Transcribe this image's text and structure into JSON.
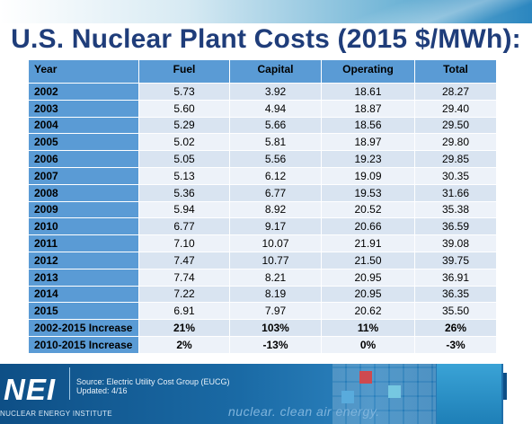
{
  "slide": {
    "title": "U.S. Nuclear Plant Costs (2015 $/MWh):"
  },
  "table": {
    "headers": [
      "Year",
      "Fuel",
      "Capital",
      "Operating",
      "Total"
    ],
    "rows": [
      [
        "2002",
        "5.73",
        "3.92",
        "18.61",
        "28.27"
      ],
      [
        "2003",
        "5.60",
        "4.94",
        "18.87",
        "29.40"
      ],
      [
        "2004",
        "5.29",
        "5.66",
        "18.56",
        "29.50"
      ],
      [
        "2005",
        "5.02",
        "5.81",
        "18.97",
        "29.80"
      ],
      [
        "2006",
        "5.05",
        "5.56",
        "19.23",
        "29.85"
      ],
      [
        "2007",
        "5.13",
        "6.12",
        "19.09",
        "30.35"
      ],
      [
        "2008",
        "5.36",
        "6.77",
        "19.53",
        "31.66"
      ],
      [
        "2009",
        "5.94",
        "8.92",
        "20.52",
        "35.38"
      ],
      [
        "2010",
        "6.77",
        "9.17",
        "20.66",
        "36.59"
      ],
      [
        "2011",
        "7.10",
        "10.07",
        "21.91",
        "39.08"
      ],
      [
        "2012",
        "7.47",
        "10.77",
        "21.50",
        "39.75"
      ],
      [
        "2013",
        "7.74",
        "8.21",
        "20.95",
        "36.91"
      ],
      [
        "2014",
        "7.22",
        "8.19",
        "20.95",
        "36.35"
      ],
      [
        "2015",
        "6.91",
        "7.97",
        "20.62",
        "35.50"
      ],
      [
        "2002-2015 Increase",
        "21%",
        "103%",
        "11%",
        "26%"
      ],
      [
        "2010-2015 Increase",
        "2%",
        "-13%",
        "0%",
        "-3%"
      ]
    ]
  },
  "footer": {
    "logo": "NEI",
    "logo_sub": "NUCLEAR ENERGY INSTITUTE",
    "source_line": "Source: Electric Utility Cost Group (EUCG)",
    "updated_line": "Updated:  4/16",
    "tagline": "nuclear. clean air energy."
  },
  "colors": {
    "title": "#1f3d7a",
    "header_cell": "#5a9bd5",
    "row_odd": "#d9e4f1",
    "row_even": "#edf2f9",
    "footer_bg": "#1a6aa5"
  }
}
